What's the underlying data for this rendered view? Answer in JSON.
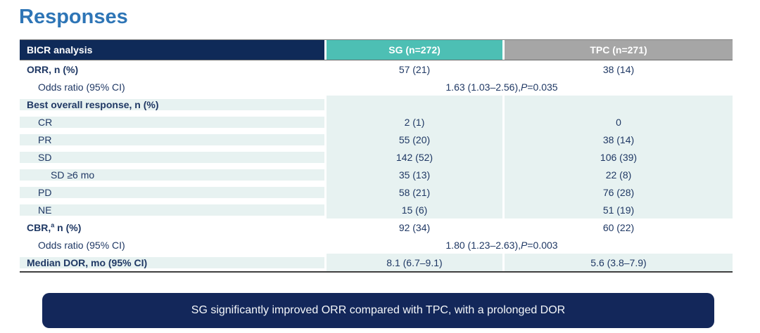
{
  "title": "Responses",
  "colors": {
    "title_blue": "#2E75B6",
    "header_navy": "#0F2A58",
    "sg_teal": "#4DBFB4",
    "tpc_gray": "#A6A6A6",
    "row_light_blue": "#E7F2F1",
    "body_text_navy": "#1F3864",
    "callout_navy": "#13275A"
  },
  "table": {
    "header": {
      "analysis_label": "BICR analysis",
      "sg_label": "SG (n=272)",
      "tpc_label": "TPC (n=271)"
    },
    "rows": [
      {
        "label": "ORR, n (%)",
        "style": "bold",
        "bg": "white",
        "sg": "57 (21)",
        "tpc": "38 (14)"
      },
      {
        "label": "Odds ratio (95% CI)",
        "style": "indent1",
        "bg": "white",
        "merged": {
          "pre": "1.63 (1.03–2.56), ",
          "p": "P",
          "post": "=0.035"
        }
      },
      {
        "label": "Best overall response, n (%)",
        "style": "bold",
        "bg": "blue",
        "sg": "",
        "tpc": ""
      },
      {
        "label": "CR",
        "style": "indent1",
        "bg": "blue",
        "sg": "2 (1)",
        "tpc": "0"
      },
      {
        "label": "PR",
        "style": "indent1",
        "bg": "blue",
        "sg": "55 (20)",
        "tpc": "38 (14)"
      },
      {
        "label": "SD",
        "style": "indent1",
        "bg": "blue",
        "sg": "142 (52)",
        "tpc": "106 (39)"
      },
      {
        "label": "SD ≥6 mo",
        "style": "indent2",
        "bg": "blue",
        "sg": "35 (13)",
        "tpc": "22 (8)"
      },
      {
        "label": "PD",
        "style": "indent1",
        "bg": "blue",
        "sg": "58 (21)",
        "tpc": "76 (28)"
      },
      {
        "label": "NE",
        "style": "indent1",
        "bg": "blue",
        "sg": "15 (6)",
        "tpc": "51 (19)"
      },
      {
        "label": "CBR,",
        "label_sup": "a",
        "label_post": " n (%)",
        "style": "bold",
        "bg": "white",
        "sg": "92 (34)",
        "tpc": "60 (22)"
      },
      {
        "label": "Odds ratio (95% CI)",
        "style": "indent1",
        "bg": "white",
        "merged": {
          "pre": "1.80 (1.23–2.63), ",
          "p": "P",
          "post": "=0.003"
        }
      },
      {
        "label": "Median DOR, mo (95% CI)",
        "style": "bold",
        "bg": "blue",
        "sg": "8.1 (6.7–9.1)",
        "tpc": "5.6 (3.8–7.9)"
      }
    ]
  },
  "callout": {
    "text": "SG significantly improved ORR compared with TPC, with a prolonged DOR"
  }
}
